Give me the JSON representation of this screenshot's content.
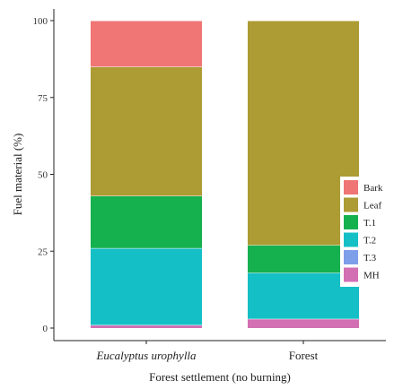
{
  "chart_data": {
    "type": "bar",
    "stacked": true,
    "categories": [
      "Eucalyptus urophylla",
      "Forest"
    ],
    "category_styles": [
      "italic",
      "normal"
    ],
    "series": [
      {
        "name": "MH",
        "color": "#d36fb3",
        "values": [
          1,
          3
        ]
      },
      {
        "name": "T.3",
        "color": "#7d9ee8",
        "values": [
          0,
          0
        ]
      },
      {
        "name": "T.2",
        "color": "#15bfc6",
        "values": [
          25,
          15
        ]
      },
      {
        "name": "T.1",
        "color": "#16b14f",
        "values": [
          17,
          9
        ]
      },
      {
        "name": "Leaf",
        "color": "#ad9b34",
        "values": [
          42,
          73
        ]
      },
      {
        "name": "Bark",
        "color": "#f07575",
        "values": [
          15,
          0
        ]
      }
    ],
    "legend_order": [
      "Bark",
      "Leaf",
      "T.1",
      "T.2",
      "T.3",
      "MH"
    ],
    "xlabel": "Forest settlement (no burning)",
    "ylabel": "Fuel material (%)",
    "ylim": [
      0,
      100
    ],
    "yticks": [
      0,
      25,
      50,
      75,
      100
    ],
    "grid": false,
    "legend_position": "right"
  }
}
